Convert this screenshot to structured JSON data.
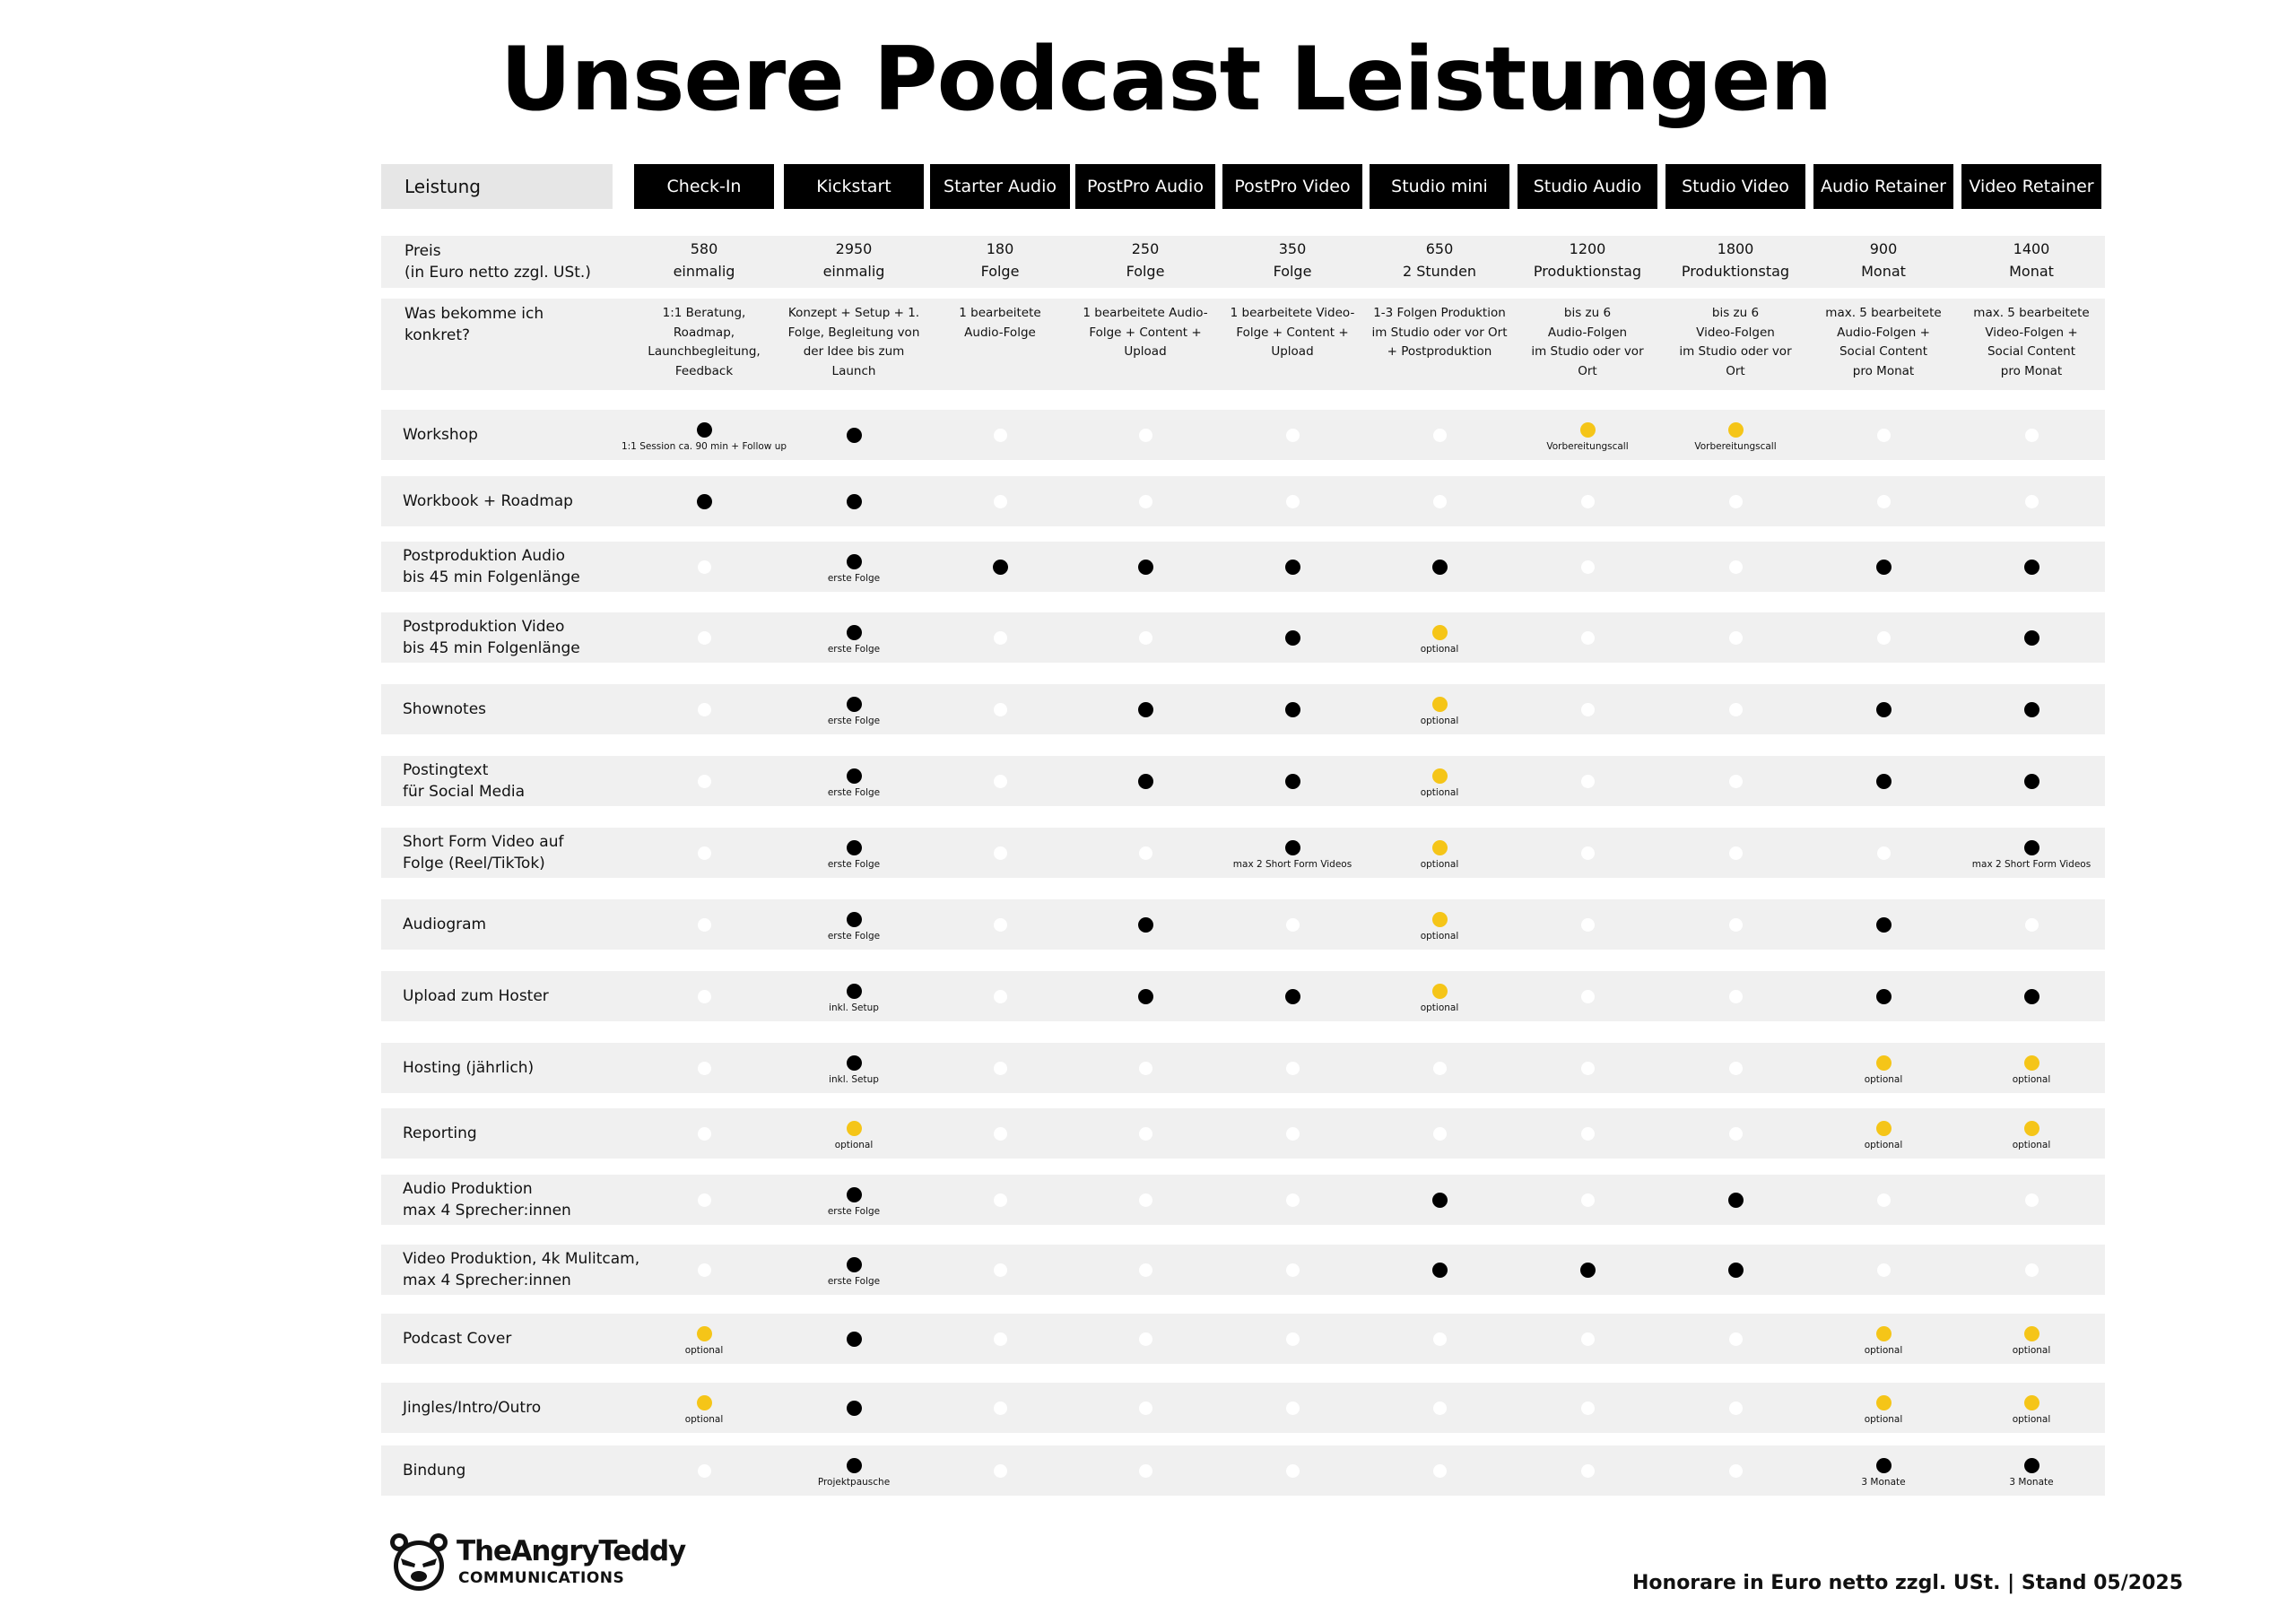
{
  "title": "Unsere Podcast Leistungen",
  "header_label": "Leistung",
  "packages": [
    "Check-In",
    "Kickstart",
    "Starter Audio",
    "PostPro Audio",
    "PostPro Video",
    "Studio mini",
    "Studio Audio",
    "Studio Video",
    "Audio Retainer",
    "Video Retainer"
  ],
  "price_label": "Preis\n(in Euro netto zzgl. USt.)",
  "prices": [
    {
      "amount": "580",
      "unit": "einmalig"
    },
    {
      "amount": "2950",
      "unit": "einmalig"
    },
    {
      "amount": "180",
      "unit": "Folge"
    },
    {
      "amount": "250",
      "unit": "Folge"
    },
    {
      "amount": "350",
      "unit": "Folge"
    },
    {
      "amount": "650",
      "unit": "2 Stunden"
    },
    {
      "amount": "1200",
      "unit": "Produktionstag"
    },
    {
      "amount": "1800",
      "unit": "Produktionstag"
    },
    {
      "amount": "900",
      "unit": "Monat"
    },
    {
      "amount": "1400",
      "unit": "Monat"
    }
  ],
  "what_label": "Was bekomme ich\nkonkret?",
  "what": [
    "1:1 Beratung,\nRoadmap,\nLaunchbegleitung,\nFeedback",
    "Konzept + Setup + 1.\nFolge, Begleitung von\nder Idee bis zum\nLaunch",
    "1 bearbeitete\nAudio-Folge",
    "1 bearbeitete Audio-\nFolge + Content +\nUpload",
    "1 bearbeitete Video-\nFolge + Content +\nUpload",
    "1-3 Folgen Produktion\nim Studio oder vor Ort\n+ Postproduktion",
    "bis zu 6\nAudio-Folgen\nim Studio oder vor\nOrt",
    "bis zu 6\nVideo-Folgen\nim Studio oder vor\nOrt",
    "max. 5 bearbeitete\nAudio-Folgen +\nSocial Content\npro Monat",
    "max. 5 bearbeitete\nVideo-Folgen +\nSocial Content\npro Monat"
  ],
  "legend_colors": {
    "included": "#000000",
    "optional": "#f5c518",
    "not_included": "#ffffff",
    "band": "#f0f0f0"
  },
  "features": [
    {
      "label": "Workshop",
      "cells": [
        "full",
        "full",
        "empty",
        "empty",
        "empty",
        "empty",
        "optional",
        "optional",
        "empty",
        "empty"
      ],
      "notes": [
        "1:1 Session ca. 90 min + Follow up",
        "",
        "",
        "",
        "",
        "",
        "Vorbereitungscall",
        "Vorbereitungscall",
        "",
        ""
      ]
    },
    {
      "label": "Workbook + Roadmap",
      "cells": [
        "full",
        "full",
        "empty",
        "empty",
        "empty",
        "empty",
        "empty",
        "empty",
        "empty",
        "empty"
      ],
      "notes": [
        "",
        "",
        "",
        "",
        "",
        "",
        "",
        "",
        "",
        ""
      ]
    },
    {
      "label": "Postproduktion Audio\nbis 45 min Folgenlänge",
      "cells": [
        "empty",
        "full",
        "full",
        "full",
        "full",
        "full",
        "empty",
        "empty",
        "full",
        "full"
      ],
      "notes": [
        "",
        "erste Folge",
        "",
        "",
        "",
        "",
        "",
        "",
        "",
        ""
      ]
    },
    {
      "label": "Postproduktion Video\nbis 45 min Folgenlänge",
      "cells": [
        "empty",
        "full",
        "empty",
        "empty",
        "full",
        "optional",
        "empty",
        "empty",
        "empty",
        "full"
      ],
      "notes": [
        "",
        "erste Folge",
        "",
        "",
        "",
        "optional",
        "",
        "",
        "",
        ""
      ]
    },
    {
      "label": "Shownotes",
      "cells": [
        "empty",
        "full",
        "empty",
        "full",
        "full",
        "optional",
        "empty",
        "empty",
        "full",
        "full"
      ],
      "notes": [
        "",
        "erste Folge",
        "",
        "",
        "",
        "optional",
        "",
        "",
        "",
        ""
      ]
    },
    {
      "label": "Postingtext\nfür Social Media",
      "cells": [
        "empty",
        "full",
        "empty",
        "full",
        "full",
        "optional",
        "empty",
        "empty",
        "full",
        "full"
      ],
      "notes": [
        "",
        "erste Folge",
        "",
        "",
        "",
        "optional",
        "",
        "",
        "",
        ""
      ]
    },
    {
      "label": "Short Form Video auf\nFolge (Reel/TikTok)",
      "cells": [
        "empty",
        "full",
        "empty",
        "empty",
        "full",
        "optional",
        "empty",
        "empty",
        "empty",
        "full"
      ],
      "notes": [
        "",
        "erste Folge",
        "",
        "",
        "max 2 Short Form Videos",
        "optional",
        "",
        "",
        "",
        "max 2 Short Form Videos"
      ]
    },
    {
      "label": "Audiogram",
      "cells": [
        "empty",
        "full",
        "empty",
        "full",
        "empty",
        "optional",
        "empty",
        "empty",
        "full",
        "empty"
      ],
      "notes": [
        "",
        "erste Folge",
        "",
        "",
        "",
        "optional",
        "",
        "",
        "",
        ""
      ]
    },
    {
      "label": "Upload zum Hoster",
      "cells": [
        "empty",
        "full",
        "empty",
        "full",
        "full",
        "optional",
        "empty",
        "empty",
        "full",
        "full"
      ],
      "notes": [
        "",
        "inkl. Setup",
        "",
        "",
        "",
        "optional",
        "",
        "",
        "",
        ""
      ]
    },
    {
      "label": "Hosting (jährlich)",
      "cells": [
        "empty",
        "full",
        "empty",
        "empty",
        "empty",
        "empty",
        "empty",
        "empty",
        "optional",
        "optional"
      ],
      "notes": [
        "",
        "inkl. Setup",
        "",
        "",
        "",
        "",
        "",
        "",
        "optional",
        "optional"
      ]
    },
    {
      "label": "Reporting",
      "cells": [
        "empty",
        "optional",
        "empty",
        "empty",
        "empty",
        "empty",
        "empty",
        "empty",
        "optional",
        "optional"
      ],
      "notes": [
        "",
        "optional",
        "",
        "",
        "",
        "",
        "",
        "",
        "optional",
        "optional"
      ]
    },
    {
      "label": "Audio Produktion\nmax 4 Sprecher:innen",
      "cells": [
        "empty",
        "full",
        "empty",
        "empty",
        "empty",
        "full",
        "empty",
        "full",
        "empty",
        "empty"
      ],
      "notes": [
        "",
        "erste Folge",
        "",
        "",
        "",
        "",
        "",
        "",
        "",
        ""
      ]
    },
    {
      "label": "Video Produktion, 4k Mulitcam,\nmax 4 Sprecher:innen",
      "cells": [
        "empty",
        "full",
        "empty",
        "empty",
        "empty",
        "full",
        "full",
        "full",
        "empty",
        "empty"
      ],
      "notes": [
        "",
        "erste Folge",
        "",
        "",
        "",
        "",
        "",
        "",
        "",
        ""
      ]
    },
    {
      "label": "Podcast Cover",
      "cells": [
        "optional",
        "full",
        "empty",
        "empty",
        "empty",
        "empty",
        "empty",
        "empty",
        "optional",
        "optional"
      ],
      "notes": [
        "optional",
        "",
        "",
        "",
        "",
        "",
        "",
        "",
        "optional",
        "optional"
      ]
    },
    {
      "label": "Jingles/Intro/Outro",
      "cells": [
        "optional",
        "full",
        "empty",
        "empty",
        "empty",
        "empty",
        "empty",
        "empty",
        "optional",
        "optional"
      ],
      "notes": [
        "optional",
        "",
        "",
        "",
        "",
        "",
        "",
        "",
        "optional",
        "optional"
      ]
    },
    {
      "label": "Bindung",
      "cells": [
        "empty",
        "full",
        "empty",
        "empty",
        "empty",
        "empty",
        "empty",
        "empty",
        "full",
        "full"
      ],
      "notes": [
        "",
        "Projektpausche",
        "",
        "",
        "",
        "",
        "",
        "",
        "3 Monate",
        "3 Monate"
      ]
    }
  ],
  "logo": {
    "name": "TheAngryTeddy",
    "sub": "COMMUNICATIONS",
    "icon": "angry-teddy-bear-icon"
  },
  "footer": "Honorare in Euro netto zzgl. USt. | Stand 05/2025"
}
